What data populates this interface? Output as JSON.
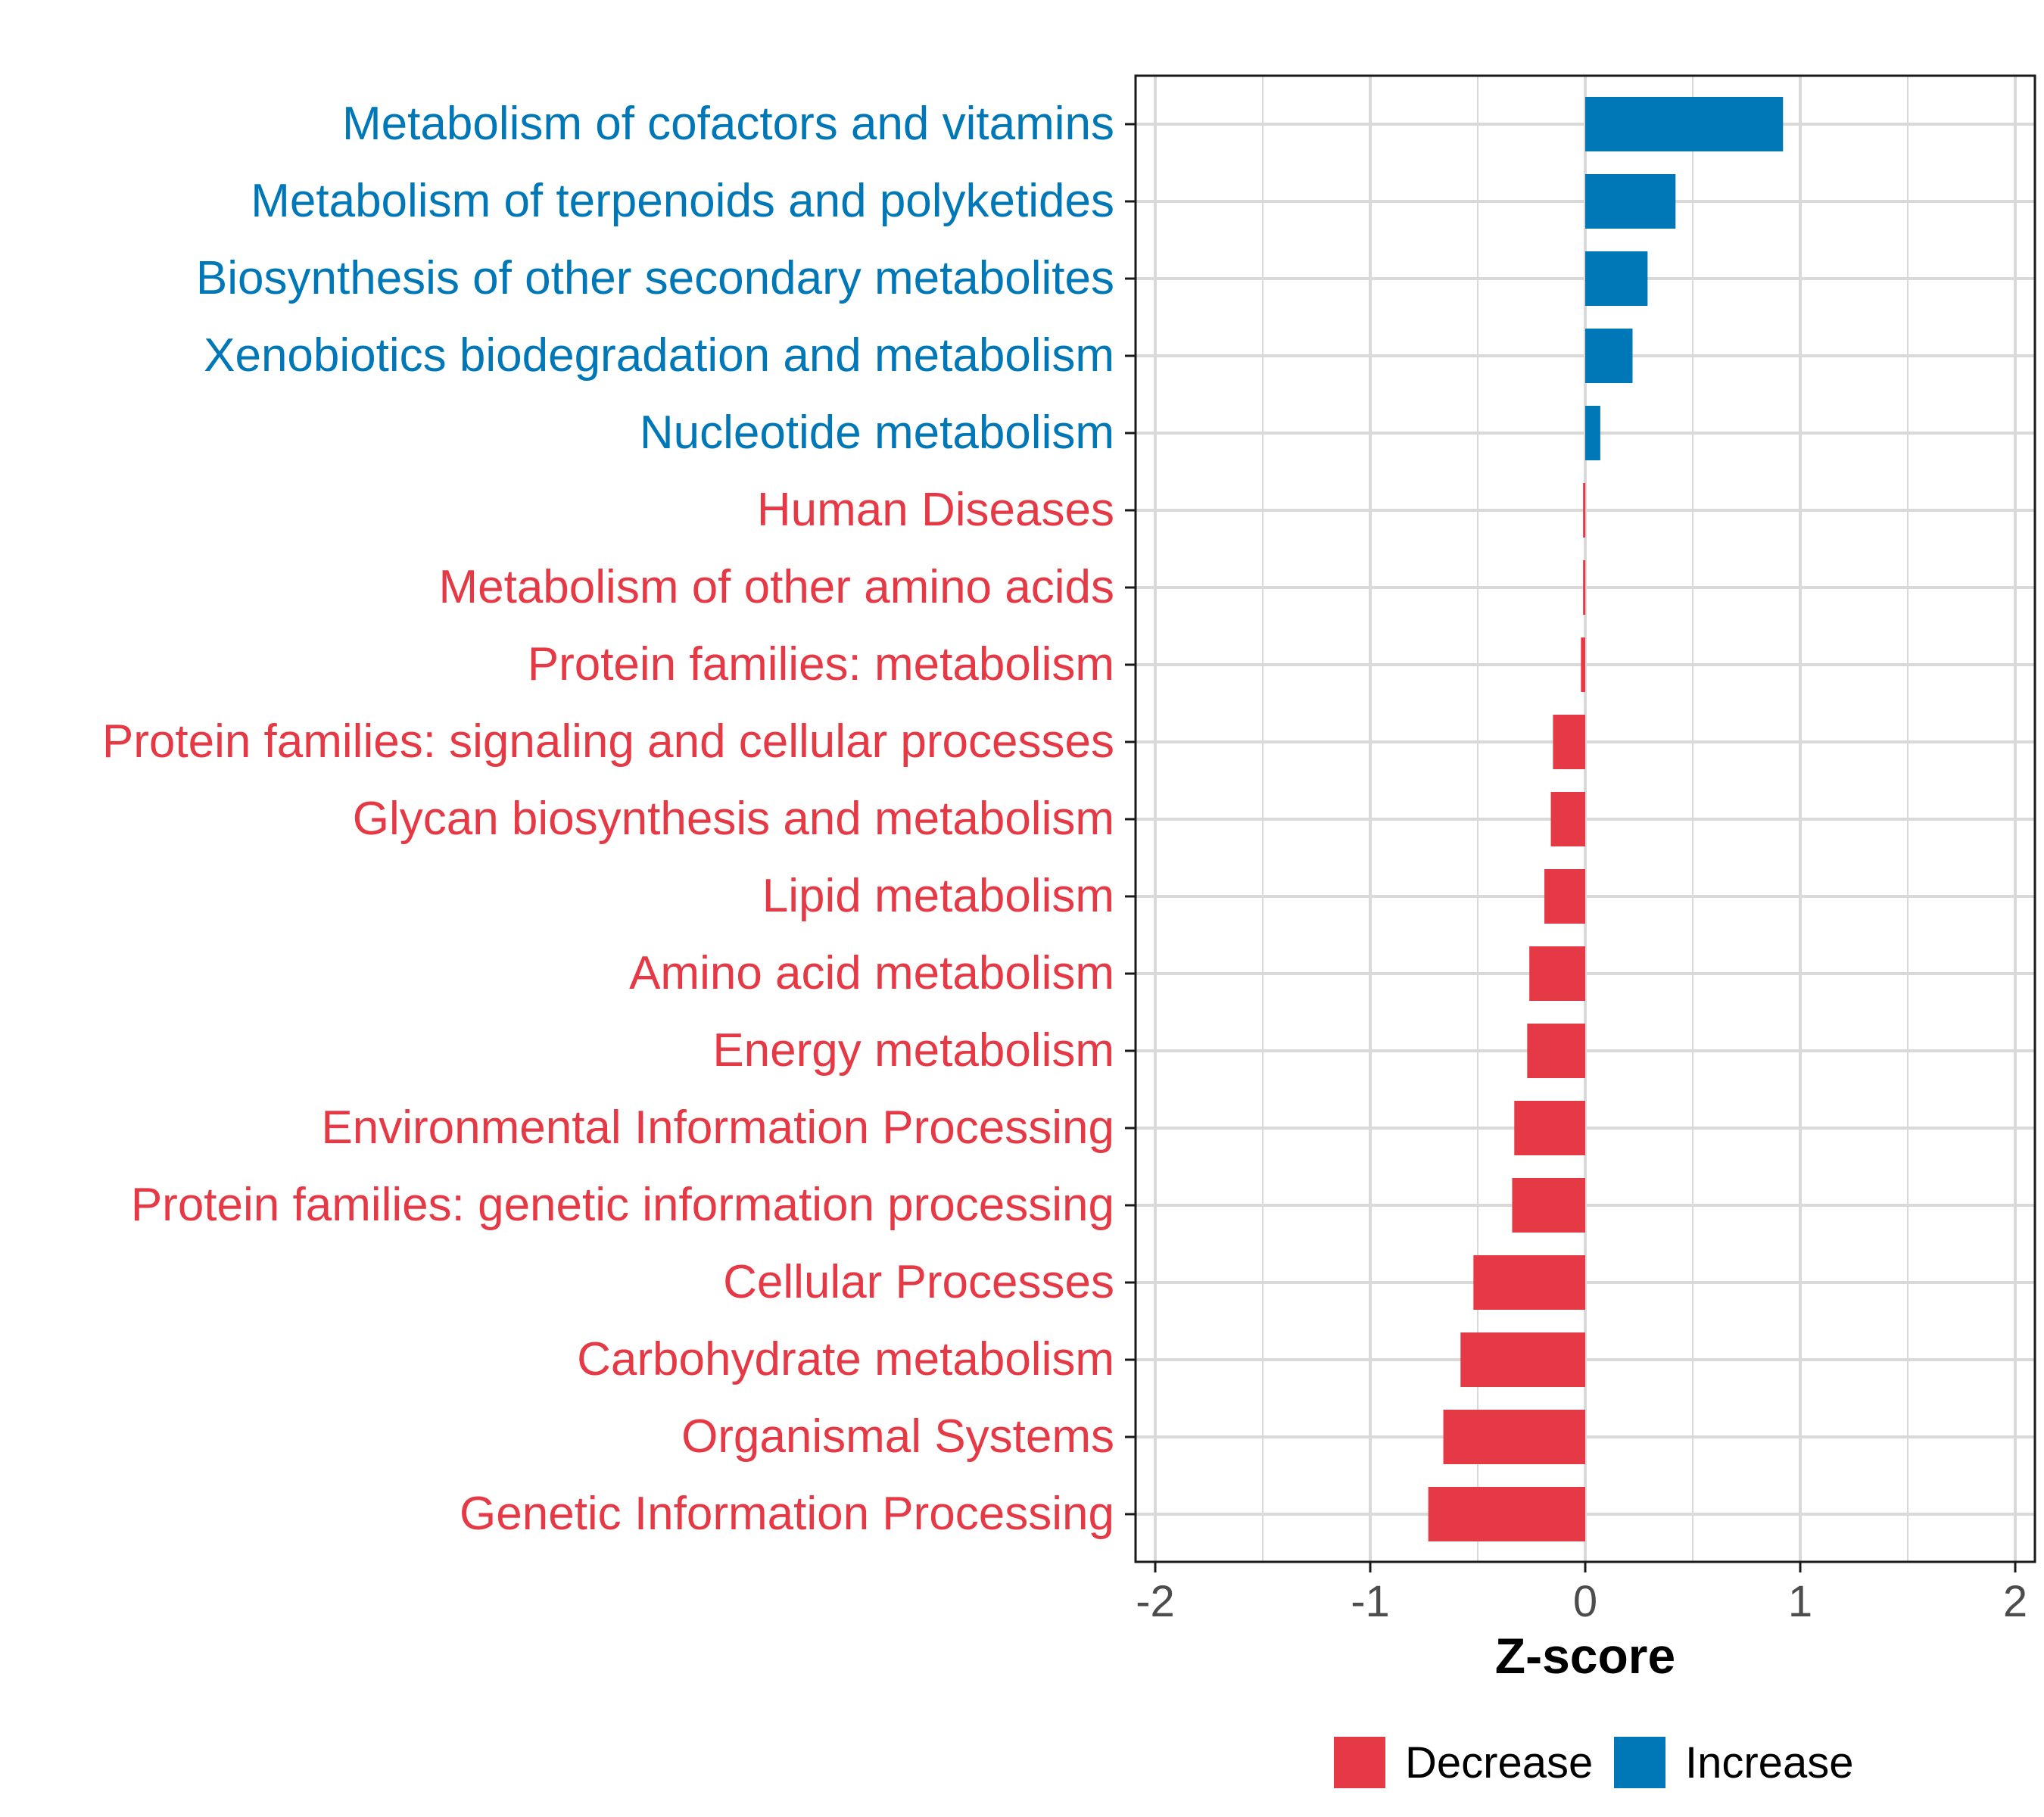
{
  "chart_data": {
    "type": "bar",
    "orientation": "horizontal",
    "title": "",
    "xlabel": "Z-score",
    "ylabel": "",
    "xlim": [
      -2,
      2
    ],
    "xticks": [
      -2,
      -1,
      0,
      1,
      2
    ],
    "xtick_labels": [
      "-2",
      "-1",
      "0",
      "1",
      "2"
    ],
    "grid": true,
    "categories": [
      "Metabolism of cofactors and vitamins",
      "Metabolism of terpenoids and polyketides",
      "Biosynthesis of other secondary metabolites",
      "Xenobiotics biodegradation and metabolism",
      "Nucleotide metabolism",
      "Human Diseases",
      "Metabolism of other amino acids",
      "Protein families: metabolism",
      "Protein families: signaling and cellular processes",
      "Glycan biosynthesis and metabolism",
      "Lipid metabolism",
      "Amino acid metabolism",
      "Energy metabolism",
      "Environmental Information Processing",
      "Protein families: genetic information processing",
      "Cellular Processes",
      "Carbohydrate metabolism",
      "Organismal Systems",
      "Genetic Information Processing"
    ],
    "values": [
      0.92,
      0.42,
      0.29,
      0.22,
      0.07,
      -0.01,
      -0.01,
      -0.02,
      -0.15,
      -0.16,
      -0.19,
      -0.26,
      -0.27,
      -0.33,
      -0.34,
      -0.52,
      -0.58,
      -0.66,
      -0.73
    ],
    "groups": [
      "Increase",
      "Increase",
      "Increase",
      "Increase",
      "Increase",
      "Decrease",
      "Decrease",
      "Decrease",
      "Decrease",
      "Decrease",
      "Decrease",
      "Decrease",
      "Decrease",
      "Decrease",
      "Decrease",
      "Decrease",
      "Decrease",
      "Decrease",
      "Decrease"
    ],
    "legend": {
      "position": "bottom",
      "entries": [
        {
          "label": "Decrease",
          "color": "#E63946"
        },
        {
          "label": "Increase",
          "color": "#0077B6"
        }
      ]
    }
  },
  "colors": {
    "decrease": "#E63946",
    "increase": "#0077B6",
    "grid": "#D9D9D9",
    "axis": "#1a1a1a",
    "tick_text": "#4D4D4D"
  }
}
